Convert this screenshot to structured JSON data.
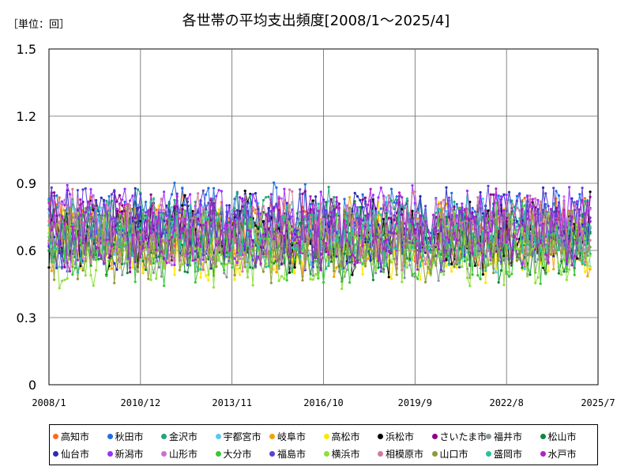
{
  "header": {
    "unit_label": "［単位：回］",
    "title": "各世帯の平均支出頻度[2008/1～2025/4]"
  },
  "chart_data": {
    "type": "line",
    "title": "各世帯の平均支出頻度[2008/1～2025/4]",
    "unit": "回",
    "xlabel": "",
    "ylabel": "",
    "x_start": "2008/1",
    "x_end": "2025/4",
    "x_ticks": [
      "2008/1",
      "2010/12",
      "2013/11",
      "2016/10",
      "2019/9",
      "2022/8",
      "2025/7"
    ],
    "y_ticks": [
      "0",
      "0.3",
      "0.6",
      "0.9",
      "1.2",
      "1.5"
    ],
    "ylim": [
      0,
      1.5
    ],
    "grid": true,
    "legend_position": "bottom",
    "series": [
      {
        "name": "高知市",
        "color": "#ff6a1a",
        "base": 0.7,
        "amp": 0.12
      },
      {
        "name": "秋田市",
        "color": "#1f6fe0",
        "base": 0.73,
        "amp": 0.13
      },
      {
        "name": "金沢市",
        "color": "#21a775",
        "base": 0.7,
        "amp": 0.13
      },
      {
        "name": "宇都宮市",
        "color": "#5cc8f0",
        "base": 0.68,
        "amp": 0.12
      },
      {
        "name": "岐阜市",
        "color": "#f2a200",
        "base": 0.66,
        "amp": 0.12
      },
      {
        "name": "高松市",
        "color": "#ffe600",
        "base": 0.63,
        "amp": 0.13
      },
      {
        "name": "浜松市",
        "color": "#000000",
        "base": 0.67,
        "amp": 0.14
      },
      {
        "name": "さいたま市",
        "color": "#8b008b",
        "base": 0.68,
        "amp": 0.13
      },
      {
        "name": "福井市",
        "color": "#8a9699",
        "base": 0.62,
        "amp": 0.12
      },
      {
        "name": "松山市",
        "color": "#0b8a3a",
        "base": 0.64,
        "amp": 0.13
      },
      {
        "name": "仙台市",
        "color": "#2b2bb8",
        "base": 0.7,
        "amp": 0.13
      },
      {
        "name": "新潟市",
        "color": "#9b30ff",
        "base": 0.72,
        "amp": 0.13
      },
      {
        "name": "山形市",
        "color": "#cc6fd6",
        "base": 0.68,
        "amp": 0.12
      },
      {
        "name": "大分市",
        "color": "#37c837",
        "base": 0.63,
        "amp": 0.13
      },
      {
        "name": "福島市",
        "color": "#5a3fd8",
        "base": 0.7,
        "amp": 0.14
      },
      {
        "name": "横浜市",
        "color": "#8ee03a",
        "base": 0.6,
        "amp": 0.12
      },
      {
        "name": "相模原市",
        "color": "#d27aa0",
        "base": 0.69,
        "amp": 0.13
      },
      {
        "name": "山口市",
        "color": "#8f9a3a",
        "base": 0.63,
        "amp": 0.12
      },
      {
        "name": "盛岡市",
        "color": "#26c2a0",
        "base": 0.67,
        "amp": 0.12
      },
      {
        "name": "水戸市",
        "color": "#b021c8",
        "base": 0.69,
        "amp": 0.13
      }
    ]
  }
}
